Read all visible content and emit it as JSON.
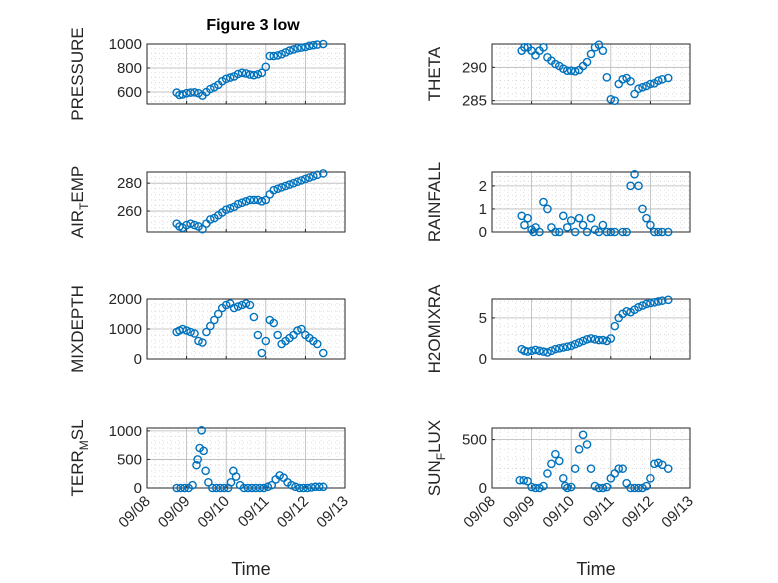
{
  "figure_title": "Figure 3 low",
  "colors": {
    "marker": "#0072BD",
    "axis": "#262626"
  },
  "chart_data": [
    {
      "type": "scatter",
      "marker": "circle",
      "ylabel": "PRESSURE",
      "xlabel": "",
      "xlim": [
        0,
        5
      ],
      "ylim": [
        500,
        1000
      ],
      "yticks": [
        600,
        800,
        1000
      ],
      "xticks": [
        "09/08",
        "09/09",
        "09/10",
        "09/11",
        "09/12",
        "09/13"
      ],
      "show_xticklabels": false,
      "x": [
        0.75,
        0.82,
        0.9,
        1.0,
        1.1,
        1.2,
        1.3,
        1.4,
        1.5,
        1.6,
        1.7,
        1.8,
        1.9,
        2.0,
        2.1,
        2.2,
        2.3,
        2.4,
        2.5,
        2.6,
        2.7,
        2.8,
        2.9,
        3.0,
        3.1,
        3.2,
        3.3,
        3.4,
        3.5,
        3.6,
        3.7,
        3.8,
        3.9,
        4.0,
        4.1,
        4.2,
        4.3,
        4.45
      ],
      "y": [
        595,
        575,
        580,
        590,
        595,
        597,
        590,
        570,
        600,
        625,
        640,
        660,
        690,
        710,
        720,
        730,
        750,
        760,
        755,
        745,
        740,
        748,
        760,
        810,
        900,
        900,
        905,
        915,
        930,
        945,
        955,
        965,
        970,
        975,
        985,
        990,
        995,
        1000
      ]
    },
    {
      "type": "scatter",
      "marker": "circle",
      "ylabel": "THETA",
      "xlabel": "",
      "xlim": [
        0,
        5
      ],
      "ylim": [
        284.5,
        293.5
      ],
      "yticks": [
        285,
        290
      ],
      "xticks": [
        "09/08",
        "09/09",
        "09/10",
        "09/11",
        "09/12",
        "09/13"
      ],
      "show_xticklabels": false,
      "x": [
        0.75,
        0.82,
        0.9,
        1.0,
        1.1,
        1.2,
        1.3,
        1.4,
        1.5,
        1.6,
        1.7,
        1.8,
        1.9,
        2.0,
        2.1,
        2.2,
        2.3,
        2.4,
        2.5,
        2.6,
        2.7,
        2.8,
        2.9,
        3.0,
        3.1,
        3.2,
        3.3,
        3.4,
        3.5,
        3.6,
        3.7,
        3.8,
        3.9,
        4.0,
        4.1,
        4.2,
        4.3,
        4.45
      ],
      "y": [
        292.5,
        293,
        293,
        292.5,
        291.8,
        292.5,
        293,
        291.5,
        291,
        290.5,
        290.2,
        289.8,
        289.5,
        289.5,
        289.4,
        289.6,
        290.2,
        290.8,
        292,
        293,
        293.4,
        292.5,
        288.5,
        285.2,
        285,
        287.5,
        288.2,
        288.4,
        287.9,
        286,
        286.8,
        287,
        287.2,
        287.5,
        287.6,
        288,
        288.2,
        288.4
      ]
    },
    {
      "type": "scatter",
      "marker": "circle",
      "ylabel": "AIR_TEMP",
      "xlabel": "",
      "xlim": [
        0,
        5
      ],
      "ylim": [
        245,
        288
      ],
      "yticks": [
        260,
        280
      ],
      "xticks": [
        "09/08",
        "09/09",
        "09/10",
        "09/11",
        "09/12",
        "09/13"
      ],
      "show_xticklabels": false,
      "x": [
        0.75,
        0.82,
        0.9,
        1.0,
        1.1,
        1.2,
        1.3,
        1.4,
        1.5,
        1.6,
        1.7,
        1.8,
        1.9,
        2.0,
        2.1,
        2.2,
        2.3,
        2.4,
        2.5,
        2.6,
        2.7,
        2.8,
        2.9,
        3.0,
        3.1,
        3.2,
        3.3,
        3.4,
        3.5,
        3.6,
        3.7,
        3.8,
        3.9,
        4.0,
        4.1,
        4.2,
        4.3,
        4.45
      ],
      "y": [
        251,
        249,
        248,
        250,
        251,
        250,
        249,
        247,
        251,
        254,
        255,
        257,
        259,
        261,
        262,
        263,
        265,
        266,
        267,
        268,
        268,
        268,
        267,
        268,
        272,
        275,
        276,
        277,
        278,
        279,
        280,
        281,
        282,
        283,
        284,
        285,
        286,
        287
      ]
    },
    {
      "type": "scatter",
      "marker": "circle",
      "ylabel": "RAINFALL",
      "xlabel": "",
      "xlim": [
        0,
        5
      ],
      "ylim": [
        0,
        2.6
      ],
      "yticks": [
        0,
        1,
        2
      ],
      "xticks": [
        "09/08",
        "09/09",
        "09/10",
        "09/11",
        "09/12",
        "09/13"
      ],
      "show_xticklabels": false,
      "x": [
        0.75,
        0.82,
        0.9,
        1.0,
        1.05,
        1.1,
        1.2,
        1.3,
        1.4,
        1.5,
        1.6,
        1.7,
        1.8,
        1.9,
        2.0,
        2.1,
        2.2,
        2.3,
        2.4,
        2.5,
        2.6,
        2.7,
        2.8,
        2.9,
        3.0,
        3.1,
        3.3,
        3.4,
        3.5,
        3.6,
        3.7,
        3.8,
        3.9,
        4.0,
        4.1,
        4.2,
        4.3,
        4.45
      ],
      "y": [
        0.7,
        0.3,
        0.6,
        0.1,
        0.0,
        0.2,
        0.0,
        1.3,
        1.0,
        0.2,
        0.0,
        0.0,
        0.7,
        0.2,
        0.5,
        0.0,
        0.6,
        0.3,
        0.0,
        0.6,
        0.1,
        0.0,
        0.3,
        0.0,
        0.0,
        0.0,
        0.0,
        0.0,
        2.0,
        2.5,
        2.0,
        1.0,
        0.6,
        0.3,
        0.0,
        0.0,
        0.0,
        0.0
      ]
    },
    {
      "type": "scatter",
      "marker": "circle",
      "ylabel": "MIXDEPTH",
      "xlabel": "",
      "xlim": [
        0,
        5
      ],
      "ylim": [
        0,
        2000
      ],
      "yticks": [
        0,
        1000,
        2000
      ],
      "xticks": [
        "09/08",
        "09/09",
        "09/10",
        "09/11",
        "09/12",
        "09/13"
      ],
      "show_xticklabels": false,
      "x": [
        0.75,
        0.82,
        0.9,
        1.0,
        1.1,
        1.2,
        1.3,
        1.4,
        1.5,
        1.6,
        1.7,
        1.8,
        1.9,
        2.0,
        2.1,
        2.2,
        2.3,
        2.4,
        2.5,
        2.6,
        2.7,
        2.8,
        2.9,
        3.0,
        3.1,
        3.2,
        3.3,
        3.4,
        3.5,
        3.6,
        3.7,
        3.8,
        3.9,
        4.0,
        4.1,
        4.2,
        4.3,
        4.45
      ],
      "y": [
        900,
        950,
        1000,
        950,
        900,
        850,
        600,
        550,
        900,
        1100,
        1300,
        1500,
        1700,
        1800,
        1850,
        1700,
        1750,
        1800,
        1850,
        1800,
        1400,
        800,
        200,
        600,
        1300,
        1200,
        800,
        500,
        600,
        700,
        800,
        950,
        1000,
        800,
        700,
        600,
        500,
        200
      ]
    },
    {
      "type": "scatter",
      "marker": "circle",
      "ylabel": "H2OMIXRA",
      "xlabel": "",
      "xlim": [
        0,
        5
      ],
      "ylim": [
        0,
        7.3
      ],
      "yticks": [
        0,
        5
      ],
      "xticks": [
        "09/08",
        "09/09",
        "09/10",
        "09/11",
        "09/12",
        "09/13"
      ],
      "show_xticklabels": false,
      "x": [
        0.75,
        0.82,
        0.9,
        1.0,
        1.1,
        1.2,
        1.3,
        1.4,
        1.5,
        1.6,
        1.7,
        1.8,
        1.9,
        2.0,
        2.1,
        2.2,
        2.3,
        2.4,
        2.5,
        2.6,
        2.7,
        2.8,
        2.9,
        3.0,
        3.1,
        3.2,
        3.3,
        3.4,
        3.5,
        3.6,
        3.7,
        3.8,
        3.9,
        4.0,
        4.1,
        4.2,
        4.3,
        4.45
      ],
      "y": [
        1.2,
        1.0,
        0.9,
        1.0,
        1.1,
        1.0,
        0.9,
        0.8,
        1.0,
        1.2,
        1.3,
        1.4,
        1.5,
        1.6,
        1.8,
        2.0,
        2.2,
        2.4,
        2.5,
        2.4,
        2.3,
        2.3,
        2.2,
        2.5,
        4.0,
        5.0,
        5.5,
        5.8,
        5.7,
        6.0,
        6.3,
        6.5,
        6.7,
        6.8,
        6.9,
        7.0,
        7.1,
        7.2
      ]
    },
    {
      "type": "scatter",
      "marker": "circle",
      "ylabel": "TERR_MSL",
      "xlabel": "Time",
      "xlim": [
        0,
        5
      ],
      "ylim": [
        0,
        1050
      ],
      "yticks": [
        0,
        500,
        1000
      ],
      "xticks": [
        "09/08",
        "09/09",
        "09/10",
        "09/11",
        "09/12",
        "09/13"
      ],
      "show_xticklabels": true,
      "x": [
        0.75,
        0.85,
        0.95,
        1.05,
        1.15,
        1.25,
        1.28,
        1.33,
        1.38,
        1.43,
        1.48,
        1.55,
        1.65,
        1.75,
        1.85,
        1.95,
        2.05,
        2.12,
        2.18,
        2.25,
        2.35,
        2.45,
        2.55,
        2.65,
        2.75,
        2.85,
        2.95,
        3.05,
        3.15,
        3.25,
        3.35,
        3.45,
        3.55,
        3.65,
        3.75,
        3.85,
        3.95,
        4.05,
        4.15,
        4.25,
        4.35,
        4.45
      ],
      "y": [
        0,
        0,
        0,
        0,
        50,
        400,
        500,
        700,
        1010,
        650,
        300,
        100,
        0,
        0,
        0,
        0,
        0,
        100,
        300,
        200,
        50,
        0,
        0,
        0,
        0,
        0,
        0,
        20,
        50,
        150,
        220,
        180,
        100,
        50,
        20,
        0,
        0,
        0,
        10,
        20,
        20,
        20
      ]
    },
    {
      "type": "scatter",
      "marker": "circle",
      "ylabel": "SUN_FLUX",
      "xlabel": "Time",
      "xlim": [
        0,
        5
      ],
      "ylim": [
        0,
        620
      ],
      "yticks": [
        0,
        500
      ],
      "xticks": [
        "09/08",
        "09/09",
        "09/10",
        "09/11",
        "09/12",
        "09/13"
      ],
      "show_xticklabels": true,
      "x": [
        0.7,
        0.8,
        0.9,
        1.0,
        1.1,
        1.2,
        1.3,
        1.4,
        1.5,
        1.6,
        1.7,
        1.8,
        1.85,
        1.9,
        2.0,
        2.1,
        2.2,
        2.3,
        2.4,
        2.5,
        2.6,
        2.7,
        2.8,
        2.9,
        3.0,
        3.1,
        3.2,
        3.3,
        3.4,
        3.5,
        3.6,
        3.7,
        3.8,
        3.9,
        4.0,
        4.1,
        4.2,
        4.3,
        4.45
      ],
      "y": [
        80,
        80,
        70,
        10,
        0,
        0,
        20,
        150,
        250,
        350,
        280,
        100,
        20,
        0,
        10,
        200,
        400,
        550,
        450,
        200,
        20,
        0,
        0,
        10,
        100,
        150,
        200,
        200,
        50,
        0,
        0,
        0,
        0,
        20,
        100,
        250,
        260,
        240,
        200
      ]
    }
  ]
}
